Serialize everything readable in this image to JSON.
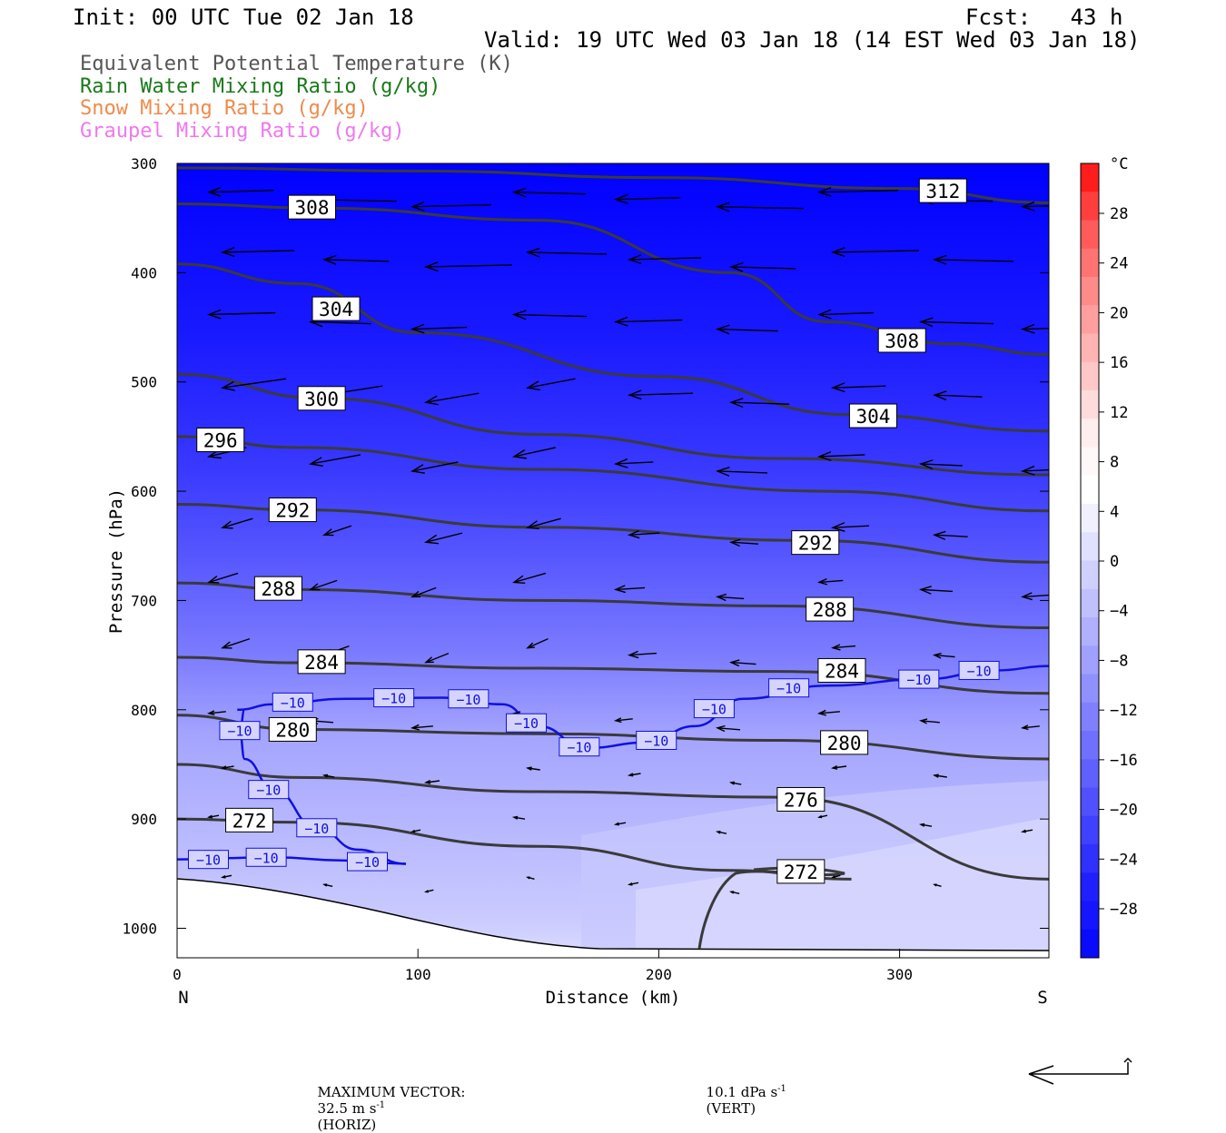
{
  "header": {
    "init": "Init: 00 UTC Tue 02 Jan 18",
    "fcst": "Fcst:   43 h",
    "valid": "Valid: 19 UTC Wed 03 Jan 18 (14 EST Wed 03 Jan 18)"
  },
  "legend": [
    {
      "label": "Equivalent Potential Temperature (K)",
      "color": "#555555"
    },
    {
      "label": "Rain Water Mixing Ratio (g/kg)",
      "color": "#1a7a1a"
    },
    {
      "label": "Snow Mixing Ratio (g/kg)",
      "color": "#f08a4b"
    },
    {
      "label": "Graupel Mixing Ratio (g/kg)",
      "color": "#ef78ef"
    }
  ],
  "chart_data": {
    "type": "heatmap",
    "description_type": "vertical cross-section",
    "xlabel": "Distance (km)",
    "ylabel": "Pressure (hPa)",
    "xlim": [
      0,
      362
    ],
    "ylim": [
      1027,
      300
    ],
    "x_ticks": [
      "0",
      "100",
      "200",
      "300"
    ],
    "x_tick_values": [
      0,
      100,
      200,
      300
    ],
    "y_ticks": [
      "300",
      "400",
      "500",
      "600",
      "700",
      "800",
      "900",
      "1000"
    ],
    "y_tick_values": [
      300,
      400,
      500,
      600,
      700,
      800,
      900,
      1000
    ],
    "x_end_labels": {
      "left": "N",
      "right": "S"
    },
    "colorbar": {
      "unit": "°C",
      "ticks": [
        "28",
        "24",
        "20",
        "16",
        "12",
        "8",
        "4",
        "0",
        "-4",
        "-8",
        "-12",
        "-16",
        "-20",
        "-24",
        "-28"
      ],
      "colors": [
        "#ff1c1c",
        "#ff3e3e",
        "#ff5b5b",
        "#ff7373",
        "#ff8a8a",
        "#ff9f9f",
        "#ffb4b4",
        "#ffc8c8",
        "#ffdcdc",
        "#ffeeee",
        "#fff8f8",
        "#ffffff",
        "#f0f0ff",
        "#e0e0ff",
        "#d0d0ff",
        "#c0c0ff",
        "#b0b0ff",
        "#a0a0ff",
        "#9090ff",
        "#8080ff",
        "#7070ff",
        "#6060ff",
        "#5050ff",
        "#4040ff",
        "#3030ff",
        "#2020ff",
        "#1515ff",
        "#0a0aff"
      ]
    },
    "theta_e_contours": [
      {
        "label": "312",
        "points": [
          [
            0,
            304
          ],
          [
            100,
            307
          ],
          [
            200,
            313
          ],
          [
            300,
            323
          ],
          [
            362,
            336
          ]
        ],
        "label_pos": [
          318,
          325
        ]
      },
      {
        "label": "308",
        "points": [
          [
            0,
            337
          ],
          [
            60,
            341
          ],
          [
            150,
            352
          ],
          [
            230,
            400
          ],
          [
            270,
            445
          ],
          [
            320,
            465
          ],
          [
            362,
            475
          ]
        ],
        "label_pos": [
          56,
          340
        ]
      },
      {
        "label": "308",
        "points": [],
        "label_pos": [
          301,
          462
        ]
      },
      {
        "label": "304",
        "points": [
          [
            0,
            392
          ],
          [
            50,
            410
          ],
          [
            100,
            455
          ],
          [
            200,
            495
          ],
          [
            280,
            530
          ],
          [
            362,
            545
          ]
        ],
        "label_pos": [
          66,
          433
        ]
      },
      {
        "label": "304",
        "points": [],
        "label_pos": [
          289,
          531
        ]
      },
      {
        "label": "300",
        "points": [
          [
            0,
            493
          ],
          [
            60,
            515
          ],
          [
            150,
            548
          ],
          [
            250,
            570
          ],
          [
            362,
            585
          ]
        ],
        "label_pos": [
          60,
          515
        ]
      },
      {
        "label": "296",
        "points": [
          [
            0,
            550
          ],
          [
            50,
            560
          ],
          [
            150,
            580
          ],
          [
            270,
            600
          ],
          [
            362,
            618
          ]
        ],
        "label_pos": [
          18,
          553
        ]
      },
      {
        "label": "292",
        "points": [
          [
            0,
            612
          ],
          [
            50,
            617
          ],
          [
            150,
            633
          ],
          [
            260,
            645
          ],
          [
            362,
            665
          ]
        ],
        "label_pos": [
          48,
          617
        ]
      },
      {
        "label": "292",
        "points": [],
        "label_pos": [
          265,
          647
        ]
      },
      {
        "label": "288",
        "points": [
          [
            0,
            684
          ],
          [
            50,
            690
          ],
          [
            150,
            700
          ],
          [
            250,
            705
          ],
          [
            362,
            725
          ]
        ],
        "label_pos": [
          42,
          689
        ]
      },
      {
        "label": "288",
        "points": [],
        "label_pos": [
          271,
          708
        ]
      },
      {
        "label": "284",
        "points": [
          [
            0,
            752
          ],
          [
            50,
            757
          ],
          [
            150,
            762
          ],
          [
            250,
            765
          ],
          [
            362,
            785
          ]
        ],
        "label_pos": [
          60,
          756
        ]
      },
      {
        "label": "284",
        "points": [],
        "label_pos": [
          276,
          764
        ]
      },
      {
        "label": "280",
        "points": [
          [
            0,
            805
          ],
          [
            50,
            818
          ],
          [
            150,
            822
          ],
          [
            250,
            828
          ],
          [
            362,
            845
          ]
        ],
        "label_pos": [
          48,
          818
        ]
      },
      {
        "label": "280",
        "points": [],
        "label_pos": [
          277,
          830
        ]
      },
      {
        "label": "276",
        "points": [
          [
            0,
            850
          ],
          [
            50,
            862
          ],
          [
            150,
            875
          ],
          [
            250,
            880
          ],
          [
            362,
            955
          ]
        ],
        "label_pos": [
          259,
          882
        ]
      },
      {
        "label": "272",
        "points": [
          [
            0,
            900
          ],
          [
            50,
            903
          ],
          [
            150,
            925
          ],
          [
            230,
            947
          ],
          [
            280,
            955
          ]
        ],
        "label_pos": [
          30,
          901
        ]
      },
      {
        "label": "272",
        "points": [],
        "label_pos": [
          259,
          948
        ]
      }
    ],
    "temp_minus10_labels": [
      {
        "label": "-10",
        "pos": [
          48,
          793
        ]
      },
      {
        "label": "-10",
        "pos": [
          90,
          789
        ]
      },
      {
        "label": "-10",
        "pos": [
          121,
          790
        ]
      },
      {
        "label": "-10",
        "pos": [
          145,
          812
        ]
      },
      {
        "label": "-10",
        "pos": [
          167,
          834
        ]
      },
      {
        "label": "-10",
        "pos": [
          199,
          828
        ]
      },
      {
        "label": "-10",
        "pos": [
          223,
          799
        ]
      },
      {
        "label": "-10",
        "pos": [
          254,
          780
        ]
      },
      {
        "label": "-10",
        "pos": [
          308,
          772
        ]
      },
      {
        "label": "-10",
        "pos": [
          333,
          764
        ]
      },
      {
        "label": "-10",
        "pos": [
          26,
          819
        ]
      },
      {
        "label": "-10",
        "pos": [
          38,
          873
        ]
      },
      {
        "label": "-10",
        "pos": [
          58,
          908
        ]
      },
      {
        "label": "-10",
        "pos": [
          13,
          937
        ]
      },
      {
        "label": "-10",
        "pos": [
          37,
          935
        ]
      },
      {
        "label": "-10",
        "pos": [
          79,
          939
        ]
      }
    ]
  },
  "footer": {
    "max_vector_label": "MAXIMUM VECTOR:",
    "horiz": "32.5 m s",
    "horiz_tag": "(HORIZ)",
    "vert": "10.1 dPa s",
    "vert_tag": "(VERT)",
    "exp": "-1"
  }
}
